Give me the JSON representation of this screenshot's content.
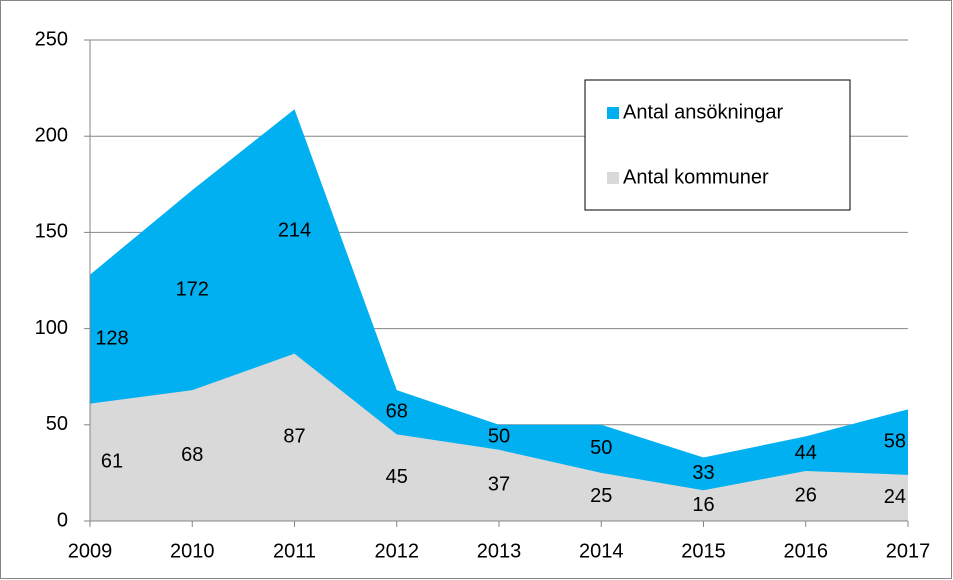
{
  "chart_data": {
    "type": "area",
    "categories": [
      "2009",
      "2010",
      "2011",
      "2012",
      "2013",
      "2014",
      "2015",
      "2016",
      "2017"
    ],
    "series": [
      {
        "name": "Antal ansökningar",
        "color": "#00b0f0",
        "values": [
          128,
          172,
          214,
          68,
          50,
          50,
          33,
          44,
          58
        ]
      },
      {
        "name": "Antal kommuner",
        "color": "#d9d9d9",
        "values": [
          61,
          68,
          87,
          45,
          37,
          25,
          16,
          26,
          24
        ]
      }
    ],
    "ylim": [
      0,
      250
    ],
    "yticks": [
      0,
      50,
      100,
      150,
      200,
      250
    ],
    "grid": true,
    "legend": "top-right"
  }
}
